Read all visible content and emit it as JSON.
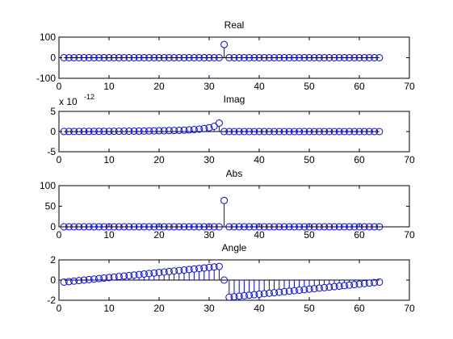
{
  "chart_data": [
    {
      "type": "stem",
      "title": "Real",
      "xlim": [
        0,
        70
      ],
      "ylim": [
        -100,
        100
      ],
      "xticks": [
        0,
        10,
        20,
        30,
        40,
        50,
        60,
        70
      ],
      "yticks": [
        -100,
        0,
        100
      ],
      "color": "#0000ff",
      "baseline_color": "#000000",
      "x": [
        1,
        2,
        3,
        4,
        5,
        6,
        7,
        8,
        9,
        10,
        11,
        12,
        13,
        14,
        15,
        16,
        17,
        18,
        19,
        20,
        21,
        22,
        23,
        24,
        25,
        26,
        27,
        28,
        29,
        30,
        31,
        32,
        33,
        34,
        35,
        36,
        37,
        38,
        39,
        40,
        41,
        42,
        43,
        44,
        45,
        46,
        47,
        48,
        49,
        50,
        51,
        52,
        53,
        54,
        55,
        56,
        57,
        58,
        59,
        60,
        61,
        62,
        63,
        64
      ],
      "y": [
        0,
        0,
        0,
        0,
        0,
        0,
        0,
        0,
        0,
        0,
        0,
        0,
        0,
        0,
        0,
        0,
        0,
        0,
        0,
        0,
        0,
        0,
        0,
        0,
        0,
        0,
        0,
        0,
        0,
        0,
        0,
        0,
        64,
        0,
        0,
        0,
        0,
        0,
        0,
        0,
        0,
        0,
        0,
        0,
        0,
        0,
        0,
        0,
        0,
        0,
        0,
        0,
        0,
        0,
        0,
        0,
        0,
        0,
        0,
        0,
        0,
        0,
        0,
        0
      ]
    },
    {
      "type": "stem",
      "title": "Imag",
      "exponent_base": "x 10",
      "exponent_power": "-12",
      "xlim": [
        0,
        70
      ],
      "ylim": [
        -5,
        5
      ],
      "xticks": [
        0,
        10,
        20,
        30,
        40,
        50,
        60,
        70
      ],
      "yticks": [
        -5,
        0,
        5
      ],
      "color": "#0000ff",
      "baseline_color": "#000000",
      "x": [
        1,
        2,
        3,
        4,
        5,
        6,
        7,
        8,
        9,
        10,
        11,
        12,
        13,
        14,
        15,
        16,
        17,
        18,
        19,
        20,
        21,
        22,
        23,
        24,
        25,
        26,
        27,
        28,
        29,
        30,
        31,
        32,
        33,
        34,
        35,
        36,
        37,
        38,
        39,
        40,
        41,
        42,
        43,
        44,
        45,
        46,
        47,
        48,
        49,
        50,
        51,
        52,
        53,
        54,
        55,
        56,
        57,
        58,
        59,
        60,
        61,
        62,
        63,
        64
      ],
      "y": [
        0.02,
        0.02,
        0.03,
        0.03,
        0.04,
        0.04,
        0.05,
        0.05,
        0.06,
        0.06,
        0.07,
        0.08,
        0.09,
        0.1,
        0.11,
        0.12,
        0.13,
        0.15,
        0.17,
        0.19,
        0.21,
        0.24,
        0.27,
        0.31,
        0.36,
        0.42,
        0.5,
        0.6,
        0.75,
        0.95,
        1.3,
        2.1,
        0,
        0,
        0,
        0,
        0,
        0,
        0,
        0,
        0,
        0,
        0,
        0,
        0,
        0,
        0,
        0,
        0,
        0,
        0,
        0,
        0,
        0,
        0,
        0,
        0,
        0,
        0,
        0,
        0,
        0,
        0,
        0
      ]
    },
    {
      "type": "stem",
      "title": "Abs",
      "xlim": [
        0,
        70
      ],
      "ylim": [
        0,
        100
      ],
      "xticks": [
        0,
        10,
        20,
        30,
        40,
        50,
        60,
        70
      ],
      "yticks": [
        0,
        50,
        100
      ],
      "color": "#0000ff",
      "baseline_color": "#000000",
      "x": [
        1,
        2,
        3,
        4,
        5,
        6,
        7,
        8,
        9,
        10,
        11,
        12,
        13,
        14,
        15,
        16,
        17,
        18,
        19,
        20,
        21,
        22,
        23,
        24,
        25,
        26,
        27,
        28,
        29,
        30,
        31,
        32,
        33,
        34,
        35,
        36,
        37,
        38,
        39,
        40,
        41,
        42,
        43,
        44,
        45,
        46,
        47,
        48,
        49,
        50,
        51,
        52,
        53,
        54,
        55,
        56,
        57,
        58,
        59,
        60,
        61,
        62,
        63,
        64
      ],
      "y": [
        0,
        0,
        0,
        0,
        0,
        0,
        0,
        0,
        0,
        0,
        0,
        0,
        0,
        0,
        0,
        0,
        0,
        0,
        0,
        0,
        0,
        0,
        0,
        0,
        0,
        0,
        0,
        0,
        0,
        0,
        0,
        0,
        64,
        0,
        0,
        0,
        0,
        0,
        0,
        0,
        0,
        0,
        0,
        0,
        0,
        0,
        0,
        0,
        0,
        0,
        0,
        0,
        0,
        0,
        0,
        0,
        0,
        0,
        0,
        0,
        0,
        0,
        0,
        0
      ]
    },
    {
      "type": "stem",
      "title": "Angle",
      "xlim": [
        0,
        70
      ],
      "ylim": [
        -2,
        2
      ],
      "xticks": [
        0,
        10,
        20,
        30,
        40,
        50,
        60,
        70
      ],
      "yticks": [
        -2,
        0,
        2
      ],
      "color": "#0000ff",
      "baseline_color": "#000000",
      "x": [
        1,
        2,
        3,
        4,
        5,
        6,
        7,
        8,
        9,
        10,
        11,
        12,
        13,
        14,
        15,
        16,
        17,
        18,
        19,
        20,
        21,
        22,
        23,
        24,
        25,
        26,
        27,
        28,
        29,
        30,
        31,
        32,
        33,
        34,
        35,
        36,
        37,
        38,
        39,
        40,
        41,
        42,
        43,
        44,
        45,
        46,
        47,
        48,
        49,
        50,
        51,
        52,
        53,
        54,
        55,
        56,
        57,
        58,
        59,
        60,
        61,
        62,
        63,
        64
      ],
      "y": [
        -0.2,
        -0.15,
        -0.1,
        -0.05,
        0.0,
        0.05,
        0.1,
        0.15,
        0.2,
        0.25,
        0.3,
        0.35,
        0.4,
        0.45,
        0.5,
        0.55,
        0.6,
        0.65,
        0.7,
        0.75,
        0.8,
        0.85,
        0.9,
        0.95,
        1.0,
        1.05,
        1.1,
        1.15,
        1.2,
        1.25,
        1.3,
        1.35,
        0,
        -1.7,
        -1.65,
        -1.6,
        -1.55,
        -1.5,
        -1.45,
        -1.4,
        -1.35,
        -1.3,
        -1.25,
        -1.2,
        -1.15,
        -1.1,
        -1.05,
        -1.0,
        -0.95,
        -0.9,
        -0.85,
        -0.8,
        -0.75,
        -0.7,
        -0.65,
        -0.6,
        -0.55,
        -0.5,
        -0.45,
        -0.4,
        -0.35,
        -0.3,
        -0.25,
        -0.2
      ]
    }
  ]
}
